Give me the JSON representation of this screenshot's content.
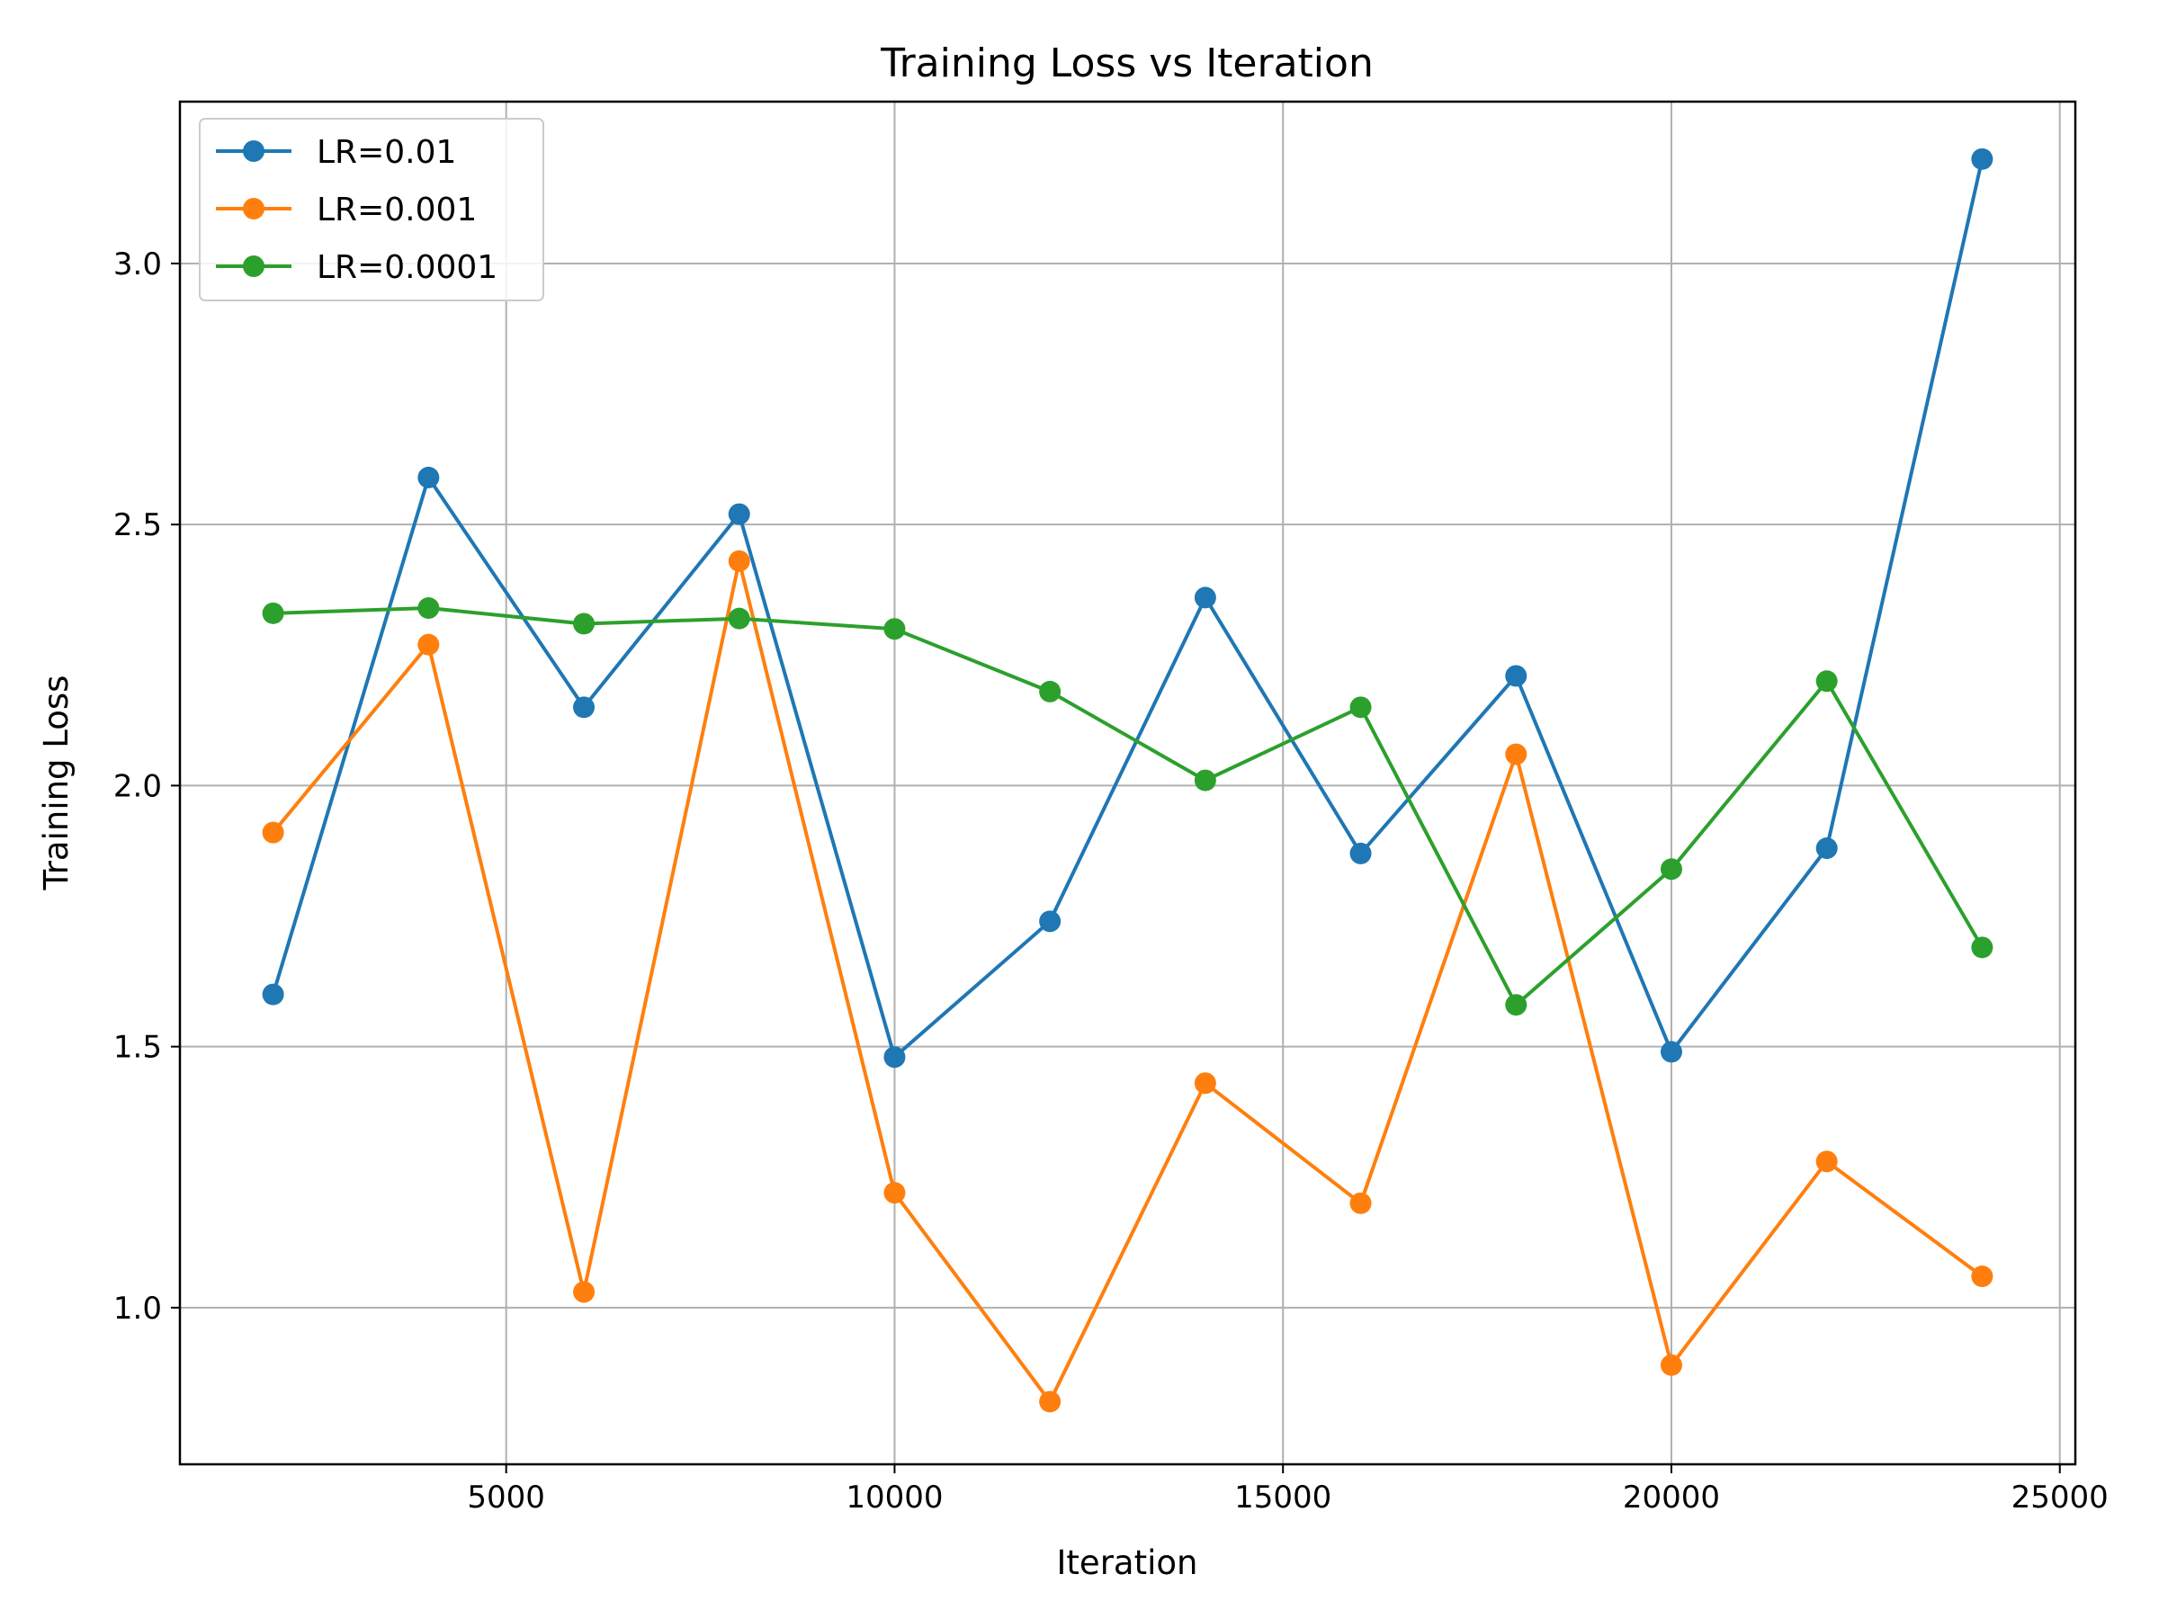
{
  "chart_data": {
    "type": "line",
    "title": "Training Loss vs Iteration",
    "xlabel": "Iteration",
    "ylabel": "Training Loss",
    "xlim": [
      800,
      25200
    ],
    "ylim": [
      0.7,
      3.31
    ],
    "xticks": [
      5000,
      10000,
      15000,
      20000,
      25000
    ],
    "yticks": [
      1.0,
      1.5,
      2.0,
      2.5,
      3.0
    ],
    "xtick_labels": [
      "5000",
      "10000",
      "15000",
      "20000",
      "25000"
    ],
    "ytick_labels": [
      "1.0",
      "1.5",
      "2.0",
      "2.5",
      "3.0"
    ],
    "grid": true,
    "legend_position": "top-left",
    "x": [
      2000,
      4000,
      6000,
      8000,
      10000,
      12000,
      14000,
      16000,
      18000,
      20000,
      22000,
      24000
    ],
    "series": [
      {
        "name": "LR=0.01",
        "color": "#1f77b4",
        "values": [
          1.6,
          2.59,
          2.15,
          2.52,
          1.48,
          1.74,
          2.36,
          1.87,
          2.21,
          1.49,
          1.88,
          3.2
        ]
      },
      {
        "name": "LR=0.001",
        "color": "#ff7f0e",
        "values": [
          1.91,
          2.27,
          1.03,
          2.43,
          1.22,
          0.82,
          1.43,
          1.2,
          2.06,
          0.89,
          1.28,
          1.06
        ]
      },
      {
        "name": "LR=0.0001",
        "color": "#2ca02c",
        "values": [
          2.33,
          2.34,
          2.31,
          2.32,
          2.3,
          2.18,
          2.01,
          2.15,
          1.58,
          1.84,
          2.2,
          1.69
        ]
      }
    ]
  }
}
